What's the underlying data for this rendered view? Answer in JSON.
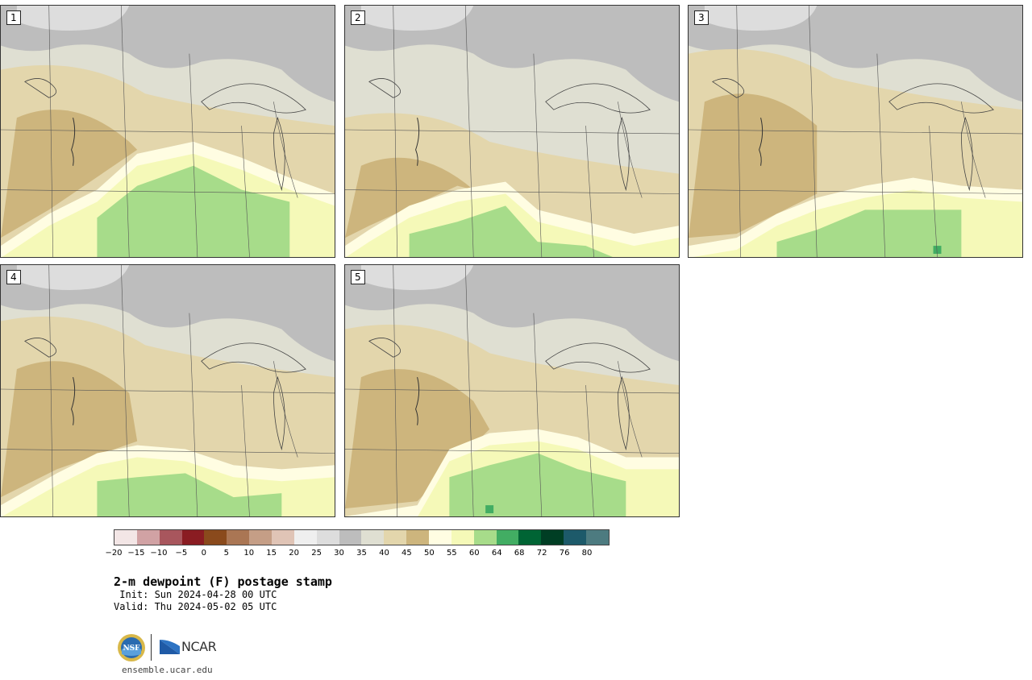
{
  "panels": [
    {
      "label": "1"
    },
    {
      "label": "2"
    },
    {
      "label": "3"
    },
    {
      "label": "4"
    },
    {
      "label": "5"
    }
  ],
  "colorbar": {
    "ticks": [
      "−20",
      "−15",
      "−10",
      "−5",
      "0",
      "5",
      "10",
      "15",
      "20",
      "25",
      "30",
      "35",
      "40",
      "45",
      "50",
      "55",
      "60",
      "64",
      "68",
      "72",
      "76",
      "80"
    ],
    "colors": [
      "#f3e6e6",
      "#d1a2a4",
      "#a8565d",
      "#8a1c22",
      "#8a4a1c",
      "#aa7654",
      "#c59e86",
      "#e0c4b6",
      "#efefef",
      "#dddddd",
      "#bdbdbd",
      "#dfdfd2",
      "#e3d6ac",
      "#cdb57d",
      "#fffde2",
      "#f5f9b8",
      "#a7dc8a",
      "#42ad63",
      "#006434",
      "#003e24",
      "#1d5a6a",
      "#4d7b80"
    ]
  },
  "title": "2-m dewpoint (F) postage stamp",
  "init": " Init: Sun 2024-04-28 00 UTC",
  "valid": "Valid: Thu 2024-05-02 05 UTC",
  "logos": {
    "nsf": "NSF",
    "ncar": "NCAR"
  },
  "site": "ensemble.ucar.edu"
}
